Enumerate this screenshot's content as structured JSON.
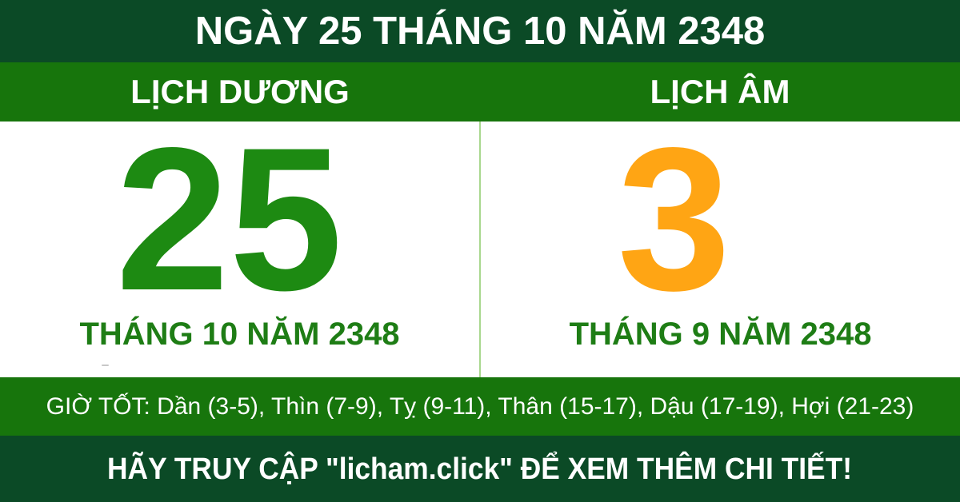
{
  "header": {
    "title": "NGÀY 25 THÁNG 10 NĂM 2348"
  },
  "columns": {
    "solar": {
      "label": "LỊCH DƯƠNG",
      "day": "25",
      "month_year": "THÁNG 10 NĂM 2348"
    },
    "lunar": {
      "label": "LỊCH ÂM",
      "day": "3",
      "month_year": "THÁNG 9 NĂM 2348"
    }
  },
  "good_hours": {
    "text": "GIỜ TỐT: Dần (3-5), Thìn (7-9), Tỵ (9-11), Thân (15-17), Dậu (17-19), Hợi (21-23)"
  },
  "footer": {
    "cta": "HÃY TRUY CẬP \"licham.click\" ĐỂ XEM THÊM CHI TIẾT!"
  },
  "colors": {
    "dark_green_band": "#0b4a26",
    "medium_green_band": "#17750c",
    "solar_number_green": "#1d8a12",
    "month_text_green": "#1e7d15",
    "lunar_number_orange": "#ffa514",
    "divider_light_green": "#a9d88f",
    "text_white": "#ffffff",
    "content_background": "#ffffff"
  }
}
